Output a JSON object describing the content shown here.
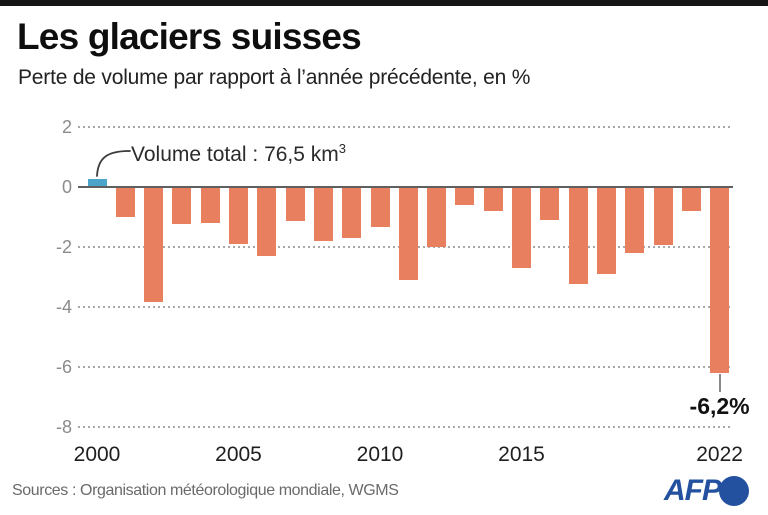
{
  "header": {
    "title": "Les glaciers suisses",
    "subtitle": "Perte de volume par rapport à l’année précédente, en %"
  },
  "chart_data": {
    "type": "bar",
    "title": "Les glaciers suisses",
    "subtitle": "Perte de volume par rapport à l’année précédente, en %",
    "x": [
      2000,
      2001,
      2002,
      2003,
      2004,
      2005,
      2006,
      2007,
      2008,
      2009,
      2010,
      2011,
      2012,
      2013,
      2014,
      2015,
      2016,
      2017,
      2018,
      2019,
      2020,
      2021,
      2022
    ],
    "values": [
      0.25,
      -1.0,
      -3.85,
      -1.25,
      -1.2,
      -1.9,
      -2.3,
      -1.15,
      -1.8,
      -1.7,
      -1.35,
      -3.1,
      -2.0,
      -0.6,
      -0.8,
      -2.7,
      -1.1,
      -3.25,
      -2.9,
      -2.2,
      -1.95,
      -0.8,
      -6.2
    ],
    "unit": "%",
    "ylim": [
      -8,
      2
    ],
    "yticks": [
      2,
      0,
      -2,
      -4,
      -6,
      -8
    ],
    "xticks": [
      2000,
      2005,
      2010,
      2015,
      2022
    ],
    "grid": "horizontal-dotted",
    "legend": "none",
    "bar_color": "#E8805F",
    "highlight_index": 0,
    "highlight_color": "#4AA5C9",
    "annotation": {
      "text_main": "Volume total : 76,5 km",
      "text_sup": "3",
      "target_year": 2000
    },
    "value_callout": {
      "year": 2022,
      "text": "-6,2%"
    }
  },
  "footer": {
    "sources": "Sources : Organisation météorologique mondiale, WGMS",
    "logo": {
      "text": "AFP",
      "color": "#2351A0"
    }
  }
}
